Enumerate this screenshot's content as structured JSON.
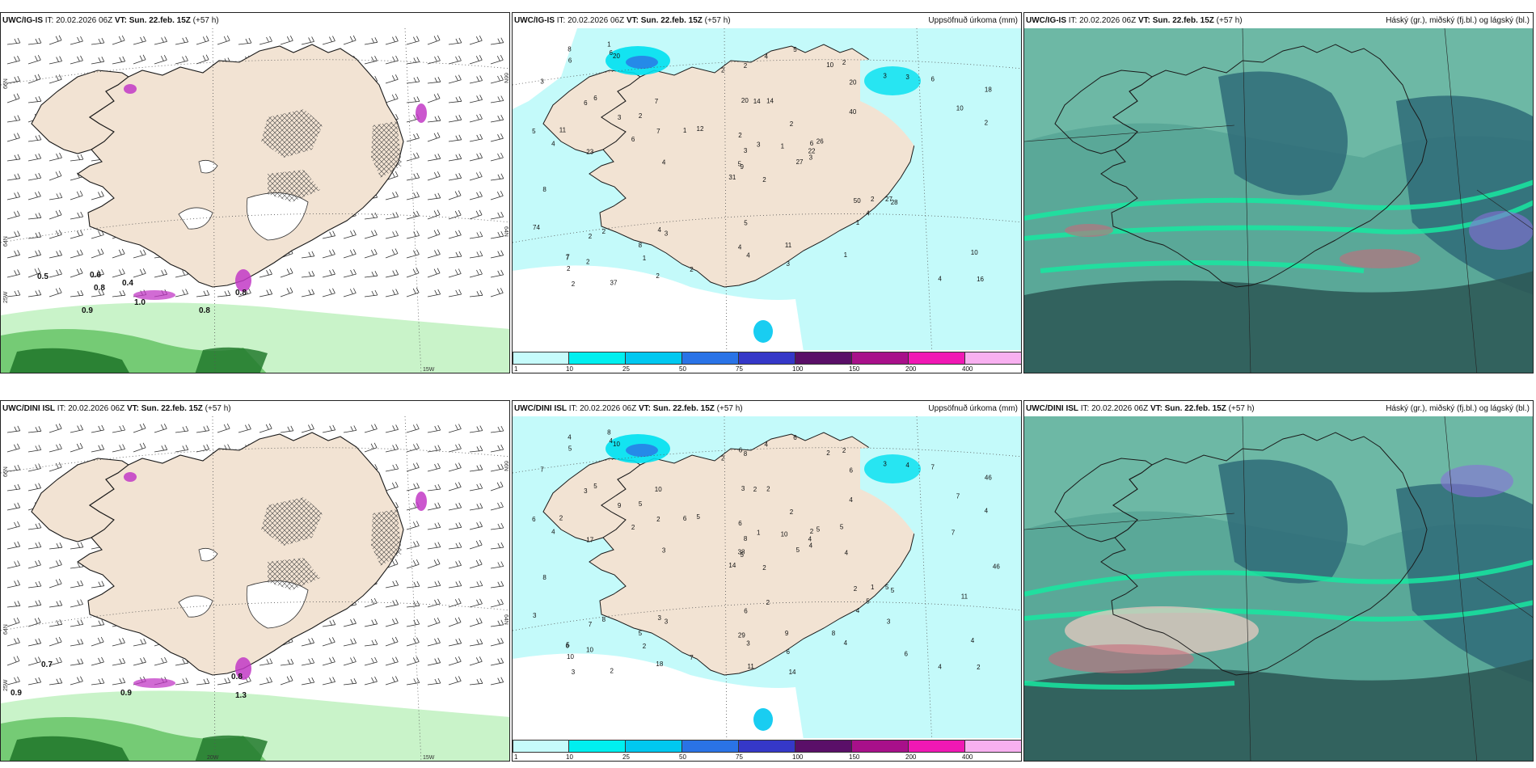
{
  "colors": {
    "land": "#f2e3d3",
    "coast": "#1a1a1a",
    "sea_precip": "#c4fafa",
    "green_light": "#c9f3c9",
    "green_mid": "#6cc66c",
    "green_dark": "#237a2e",
    "magenta": "#c23ac6",
    "cloud_base": "#5aa898",
    "cloud_dark": "#2f6b78",
    "cloud_high": "#17e8a0"
  },
  "panels": [
    {
      "id": "p1",
      "model": "UWC/IG-IS",
      "it": "IT: 20.02.2026 06Z",
      "vt_label": "VT:",
      "vt": "Sun. 22.feb. 15Z",
      "lead": "(+57 h)",
      "product": "",
      "lat_top": "66N",
      "lat_bot": "64N",
      "lat_left2": "25W",
      "lon_bot": "15W",
      "lon_bot2": "",
      "values": [
        {
          "t": "0.5"
        },
        {
          "t": "0.6"
        },
        {
          "t": "0.8"
        },
        {
          "t": "0.4"
        },
        {
          "t": "1.0"
        },
        {
          "t": "0.9"
        },
        {
          "t": "0.8"
        },
        {
          "t": "0.8"
        }
      ]
    },
    {
      "id": "p2",
      "model": "UWC/IG-IS",
      "it": "IT: 20.02.2026 06Z",
      "vt_label": "VT:",
      "vt": "Sun. 22.feb. 15Z",
      "lead": "(+57 h)",
      "product": "Uppsöfnuð úrkoma (mm)",
      "numbers": [
        "2",
        "6",
        "9",
        "7",
        "6",
        "3",
        "2",
        "14",
        "20",
        "27",
        "20",
        "16",
        "23",
        "18",
        "31",
        "40",
        "37",
        "20",
        "2",
        "2",
        "12",
        "2",
        "1",
        "14",
        "26",
        "28",
        "6",
        "2",
        "4",
        "50",
        "2",
        "5",
        "4",
        "3",
        "7",
        "3",
        "4",
        "4",
        "10",
        "27",
        "5",
        "1",
        "6",
        "1",
        "2",
        "5",
        "22",
        "2",
        "4",
        "3",
        "2",
        "10",
        "3",
        "4",
        "1",
        "8",
        "6",
        "8",
        "11",
        "6",
        "4",
        "4",
        "11",
        "2",
        "3",
        "1",
        "10",
        "2",
        "3",
        "74",
        "5",
        "2",
        "2",
        "7",
        "7",
        "6",
        "3",
        "8",
        "2",
        "3",
        "1",
        "2"
      ]
    },
    {
      "id": "p3",
      "model": "UWC/IG-IS",
      "it": "IT: 20.02.2026 06Z",
      "vt_label": "VT:",
      "vt": "Sun. 22.feb. 15Z",
      "lead": "(+57 h)",
      "product": "Háský (gr.), miðský (fj.bl.) og lágský (bl.)"
    },
    {
      "id": "p4",
      "model": "UWC/DINI ISL",
      "it": "IT: 20.02.2026 06Z",
      "vt_label": "VT:",
      "vt": "Sun. 22.feb. 15Z",
      "lead": "(+57 h)",
      "product": "",
      "lat_top": "66N",
      "lat_bot": "64N",
      "lat_left2": "25W",
      "lon_bot": "15W",
      "lon_bot2": "20W",
      "values": [
        {
          "t": "0.7"
        },
        {
          "t": "0.9"
        },
        {
          "t": "0.9"
        },
        {
          "t": "1.3"
        },
        {
          "t": "0.8"
        }
      ]
    },
    {
      "id": "p5",
      "model": "UWC/DINI ISL",
      "it": "IT: 20.02.2026 06Z",
      "vt_label": "VT:",
      "vt": "Sun. 22.feb. 15Z",
      "lead": "(+57 h)",
      "product": "Uppsöfnuð úrkoma (mm)",
      "numbers": [
        "2",
        "3",
        "5",
        "5",
        "2",
        "3",
        "2",
        "2",
        "6",
        "5",
        "10",
        "2",
        "17",
        "46",
        "14",
        "4",
        "2",
        "3",
        "2",
        "8",
        "5",
        "10",
        "2",
        "2",
        "5",
        "5",
        "5",
        "8",
        "4",
        "2",
        "4",
        "38",
        "29",
        "8",
        "10",
        "3",
        "3",
        "4",
        "4",
        "5",
        "6",
        "6",
        "2",
        "4",
        "18",
        "6",
        "4",
        "3",
        "3",
        "4",
        "7",
        "7",
        "7",
        "5",
        "4",
        "5",
        "4",
        "4",
        "9",
        "7",
        "4",
        "3",
        "2",
        "5",
        "4",
        "8",
        "2",
        "2",
        "1",
        "3",
        "6",
        "7",
        "1",
        "2",
        "6",
        "5",
        "9",
        "8",
        "6",
        "6",
        "10",
        "10",
        "4",
        "11",
        "11",
        "7",
        "2",
        "6",
        "14",
        "8",
        "6",
        "46",
        "5",
        "3"
      ]
    },
    {
      "id": "p6",
      "model": "UWC/DINI ISL",
      "it": "IT: 20.02.2026 06Z",
      "vt_label": "VT:",
      "vt": "Sun. 22.feb. 15Z",
      "lead": "(+57 h)",
      "product": "Háský (gr.), miðský (fj.bl.) og lágský (bl.)"
    }
  ],
  "colorbar": {
    "ticks": [
      "1",
      "10",
      "25",
      "50",
      "75",
      "100",
      "150",
      "200",
      "400"
    ],
    "colors": [
      "#c6fbfb",
      "#00efef",
      "#00c8f0",
      "#2a73e6",
      "#3538c8",
      "#5a0f68",
      "#a8108a",
      "#f018b4",
      "#f8b0f0"
    ]
  }
}
